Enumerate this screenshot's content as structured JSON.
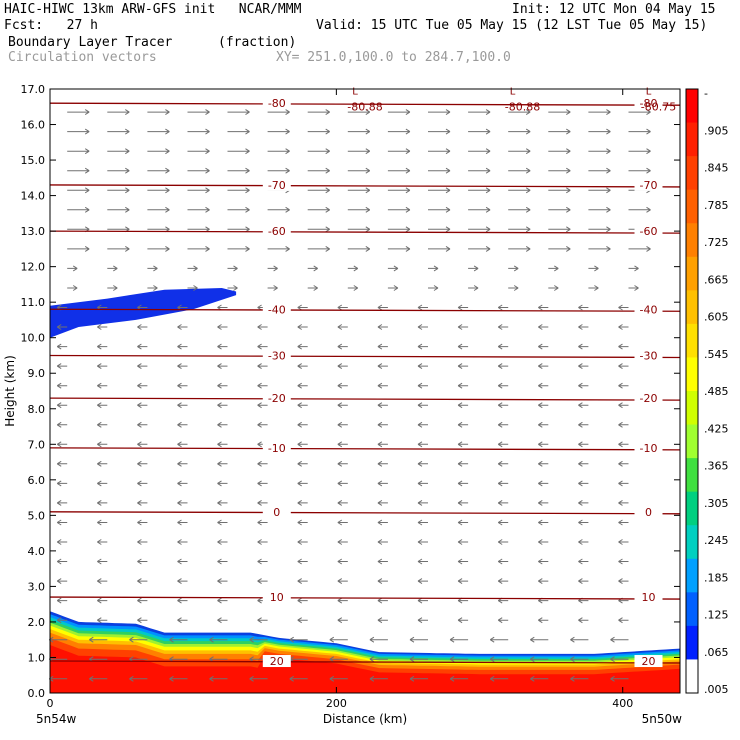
{
  "header": {
    "title_left": "HAIC-HIWC 13km ARW-GFS init   NCAR/MMM",
    "init": "Init: 12 UTC Mon 04 May 15",
    "fcst": "Fcst:   27 h",
    "valid": "Valid: 15 UTC Tue 05 May 15 (12 LST Tue 05 May 15)",
    "field_name": "Boundary Layer Tracer",
    "field_units": "(fraction)",
    "vectors_label": "Circulation vectors",
    "xy_range": "XY= 251.0,100.0 to 284.7,100.0"
  },
  "chart_data": {
    "type": "heatmap",
    "xlabel": "Distance (km)",
    "ylabel": "Height (km)",
    "xlim": [
      0,
      440
    ],
    "ylim": [
      0,
      17
    ],
    "x_ticks": [
      0,
      200,
      400
    ],
    "y_ticks": [
      "0.0",
      "1.0",
      "2.0",
      "3.0",
      "4.0",
      "5.0",
      "6.0",
      "7.0",
      "8.0",
      "9.0",
      "10.0",
      "11.0",
      "12.0",
      "13.0",
      "14.0",
      "15.0",
      "16.0",
      "17.0"
    ],
    "x_end_labels": {
      "left": "5n54w",
      "right": "5n50w"
    },
    "colorbar": {
      "labels": [
        "-",
        ".905",
        ".845",
        ".785",
        ".725",
        ".665",
        ".605",
        ".545",
        ".485",
        ".425",
        ".365",
        ".305",
        ".245",
        ".185",
        ".125",
        ".065",
        ".005"
      ],
      "colors": [
        "#ff0000",
        "#ff2000",
        "#ff4000",
        "#ff6000",
        "#ff8000",
        "#ffa000",
        "#ffc000",
        "#ffe000",
        "#ffff00",
        "#d0ff00",
        "#a0ff30",
        "#40e040",
        "#00d080",
        "#00d0c0",
        "#00a0ff",
        "#0060ff",
        "#0020ff",
        "#ffffff"
      ]
    },
    "boundary_layer_top_km": [
      [
        0,
        2.3
      ],
      [
        20,
        2.0
      ],
      [
        60,
        1.95
      ],
      [
        80,
        1.7
      ],
      [
        140,
        1.7
      ],
      [
        160,
        1.55
      ],
      [
        200,
        1.4
      ],
      [
        230,
        1.15
      ],
      [
        300,
        1.1
      ],
      [
        380,
        1.1
      ],
      [
        440,
        1.25
      ]
    ],
    "upper_tracer_band_km": {
      "x_range": [
        0,
        130
      ],
      "top": [
        [
          0,
          10.9
        ],
        [
          40,
          11.1
        ],
        [
          80,
          11.35
        ],
        [
          120,
          11.4
        ],
        [
          130,
          11.3
        ]
      ],
      "bottom": [
        [
          0,
          10.0
        ],
        [
          20,
          10.3
        ],
        [
          60,
          10.5
        ],
        [
          100,
          10.8
        ],
        [
          130,
          11.2
        ]
      ]
    },
    "temperature_contours": [
      {
        "label": "-80",
        "height_km": 16.6
      },
      {
        "label": "-70",
        "height_km": 14.3
      },
      {
        "label": "-60",
        "height_km": 13.0
      },
      {
        "label": "-40",
        "height_km": 10.8
      },
      {
        "label": "-30",
        "height_km": 9.5
      },
      {
        "label": "-20",
        "height_km": 8.3
      },
      {
        "label": "-10",
        "height_km": 6.9
      },
      {
        "label": "0",
        "height_km": 5.1
      },
      {
        "label": "10",
        "height_km": 2.7
      },
      {
        "label": "20",
        "height_km": 0.9
      }
    ],
    "minimum_labels": [
      {
        "label": "-80.88",
        "x_km": 220
      },
      {
        "label": "-80.88",
        "x_km": 330
      },
      {
        "label": "-80.75",
        "x_km": 425
      }
    ]
  }
}
